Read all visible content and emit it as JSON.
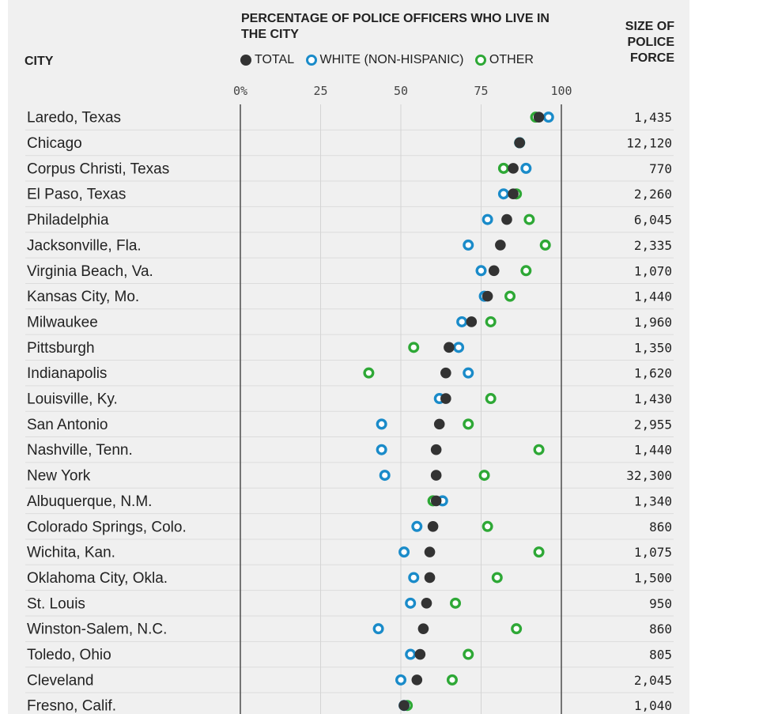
{
  "headers": {
    "city": "CITY",
    "percentage_title": "PERCENTAGE OF POLICE OFFICERS WHO LIVE IN THE CITY",
    "force_title": "SIZE OF POLICE FORCE"
  },
  "legend": {
    "total": "TOTAL",
    "white": "WHITE (NON-HISPANIC)",
    "other": "OTHER"
  },
  "colors": {
    "total": "#333333",
    "white": "#1a8bc9",
    "other": "#2ea836",
    "panel": "#f0f0f0",
    "gridline": "#d4d4d4",
    "axis_line": "#555555"
  },
  "chart_data": {
    "type": "scatter",
    "title": "PERCENTAGE OF POLICE OFFICERS WHO LIVE IN THE CITY",
    "x_ticks": [
      "0%",
      "25",
      "50",
      "75",
      "100"
    ],
    "x_tick_values": [
      0,
      25,
      50,
      75,
      100
    ],
    "xlim": [
      0,
      100
    ],
    "grid": true,
    "series_names": [
      "TOTAL",
      "WHITE (NON-HISPANIC)",
      "OTHER"
    ],
    "rows": [
      {
        "city": "Laredo, Texas",
        "total": 93,
        "white": 96,
        "other": 92,
        "force": "1,435"
      },
      {
        "city": "Chicago",
        "total": 87,
        "white": 87,
        "other": 87,
        "force": "12,120"
      },
      {
        "city": "Corpus Christi, Texas",
        "total": 85,
        "white": 89,
        "other": 82,
        "force": "770"
      },
      {
        "city": "El Paso, Texas",
        "total": 85,
        "white": 82,
        "other": 86,
        "force": "2,260"
      },
      {
        "city": "Philadelphia",
        "total": 83,
        "white": 77,
        "other": 90,
        "force": "6,045"
      },
      {
        "city": "Jacksonville, Fla.",
        "total": 81,
        "white": 71,
        "other": 95,
        "force": "2,335"
      },
      {
        "city": "Virginia Beach, Va.",
        "total": 79,
        "white": 75,
        "other": 89,
        "force": "1,070"
      },
      {
        "city": "Kansas City, Mo.",
        "total": 77,
        "white": 76,
        "other": 84,
        "force": "1,440"
      },
      {
        "city": "Milwaukee",
        "total": 72,
        "white": 69,
        "other": 78,
        "force": "1,960"
      },
      {
        "city": "Pittsburgh",
        "total": 65,
        "white": 68,
        "other": 54,
        "force": "1,350"
      },
      {
        "city": "Indianapolis",
        "total": 64,
        "white": 71,
        "other": 40,
        "force": "1,620"
      },
      {
        "city": "Louisville, Ky.",
        "total": 64,
        "white": 62,
        "other": 78,
        "force": "1,430"
      },
      {
        "city": "San Antonio",
        "total": 62,
        "white": 44,
        "other": 71,
        "force": "2,955"
      },
      {
        "city": "Nashville, Tenn.",
        "total": 61,
        "white": 44,
        "other": 93,
        "force": "1,440"
      },
      {
        "city": "New York",
        "total": 61,
        "white": 45,
        "other": 76,
        "force": "32,300"
      },
      {
        "city": "Albuquerque, N.M.",
        "total": 61,
        "white": 63,
        "other": 60,
        "force": "1,340"
      },
      {
        "city": "Colorado Springs, Colo.",
        "total": 60,
        "white": 55,
        "other": 77,
        "force": "860"
      },
      {
        "city": "Wichita, Kan.",
        "total": 59,
        "white": 51,
        "other": 93,
        "force": "1,075"
      },
      {
        "city": "Oklahoma City, Okla.",
        "total": 59,
        "white": 54,
        "other": 80,
        "force": "1,500"
      },
      {
        "city": "St. Louis",
        "total": 58,
        "white": 53,
        "other": 67,
        "force": "950"
      },
      {
        "city": "Winston-Salem, N.C.",
        "total": 57,
        "white": 43,
        "other": 86,
        "force": "860"
      },
      {
        "city": "Toledo, Ohio",
        "total": 56,
        "white": 53,
        "other": 71,
        "force": "805"
      },
      {
        "city": "Cleveland",
        "total": 55,
        "white": 50,
        "other": 66,
        "force": "2,045"
      },
      {
        "city": "Fresno, Calif.",
        "total": 51,
        "white": 51,
        "other": 52,
        "force": "1,040"
      }
    ]
  }
}
